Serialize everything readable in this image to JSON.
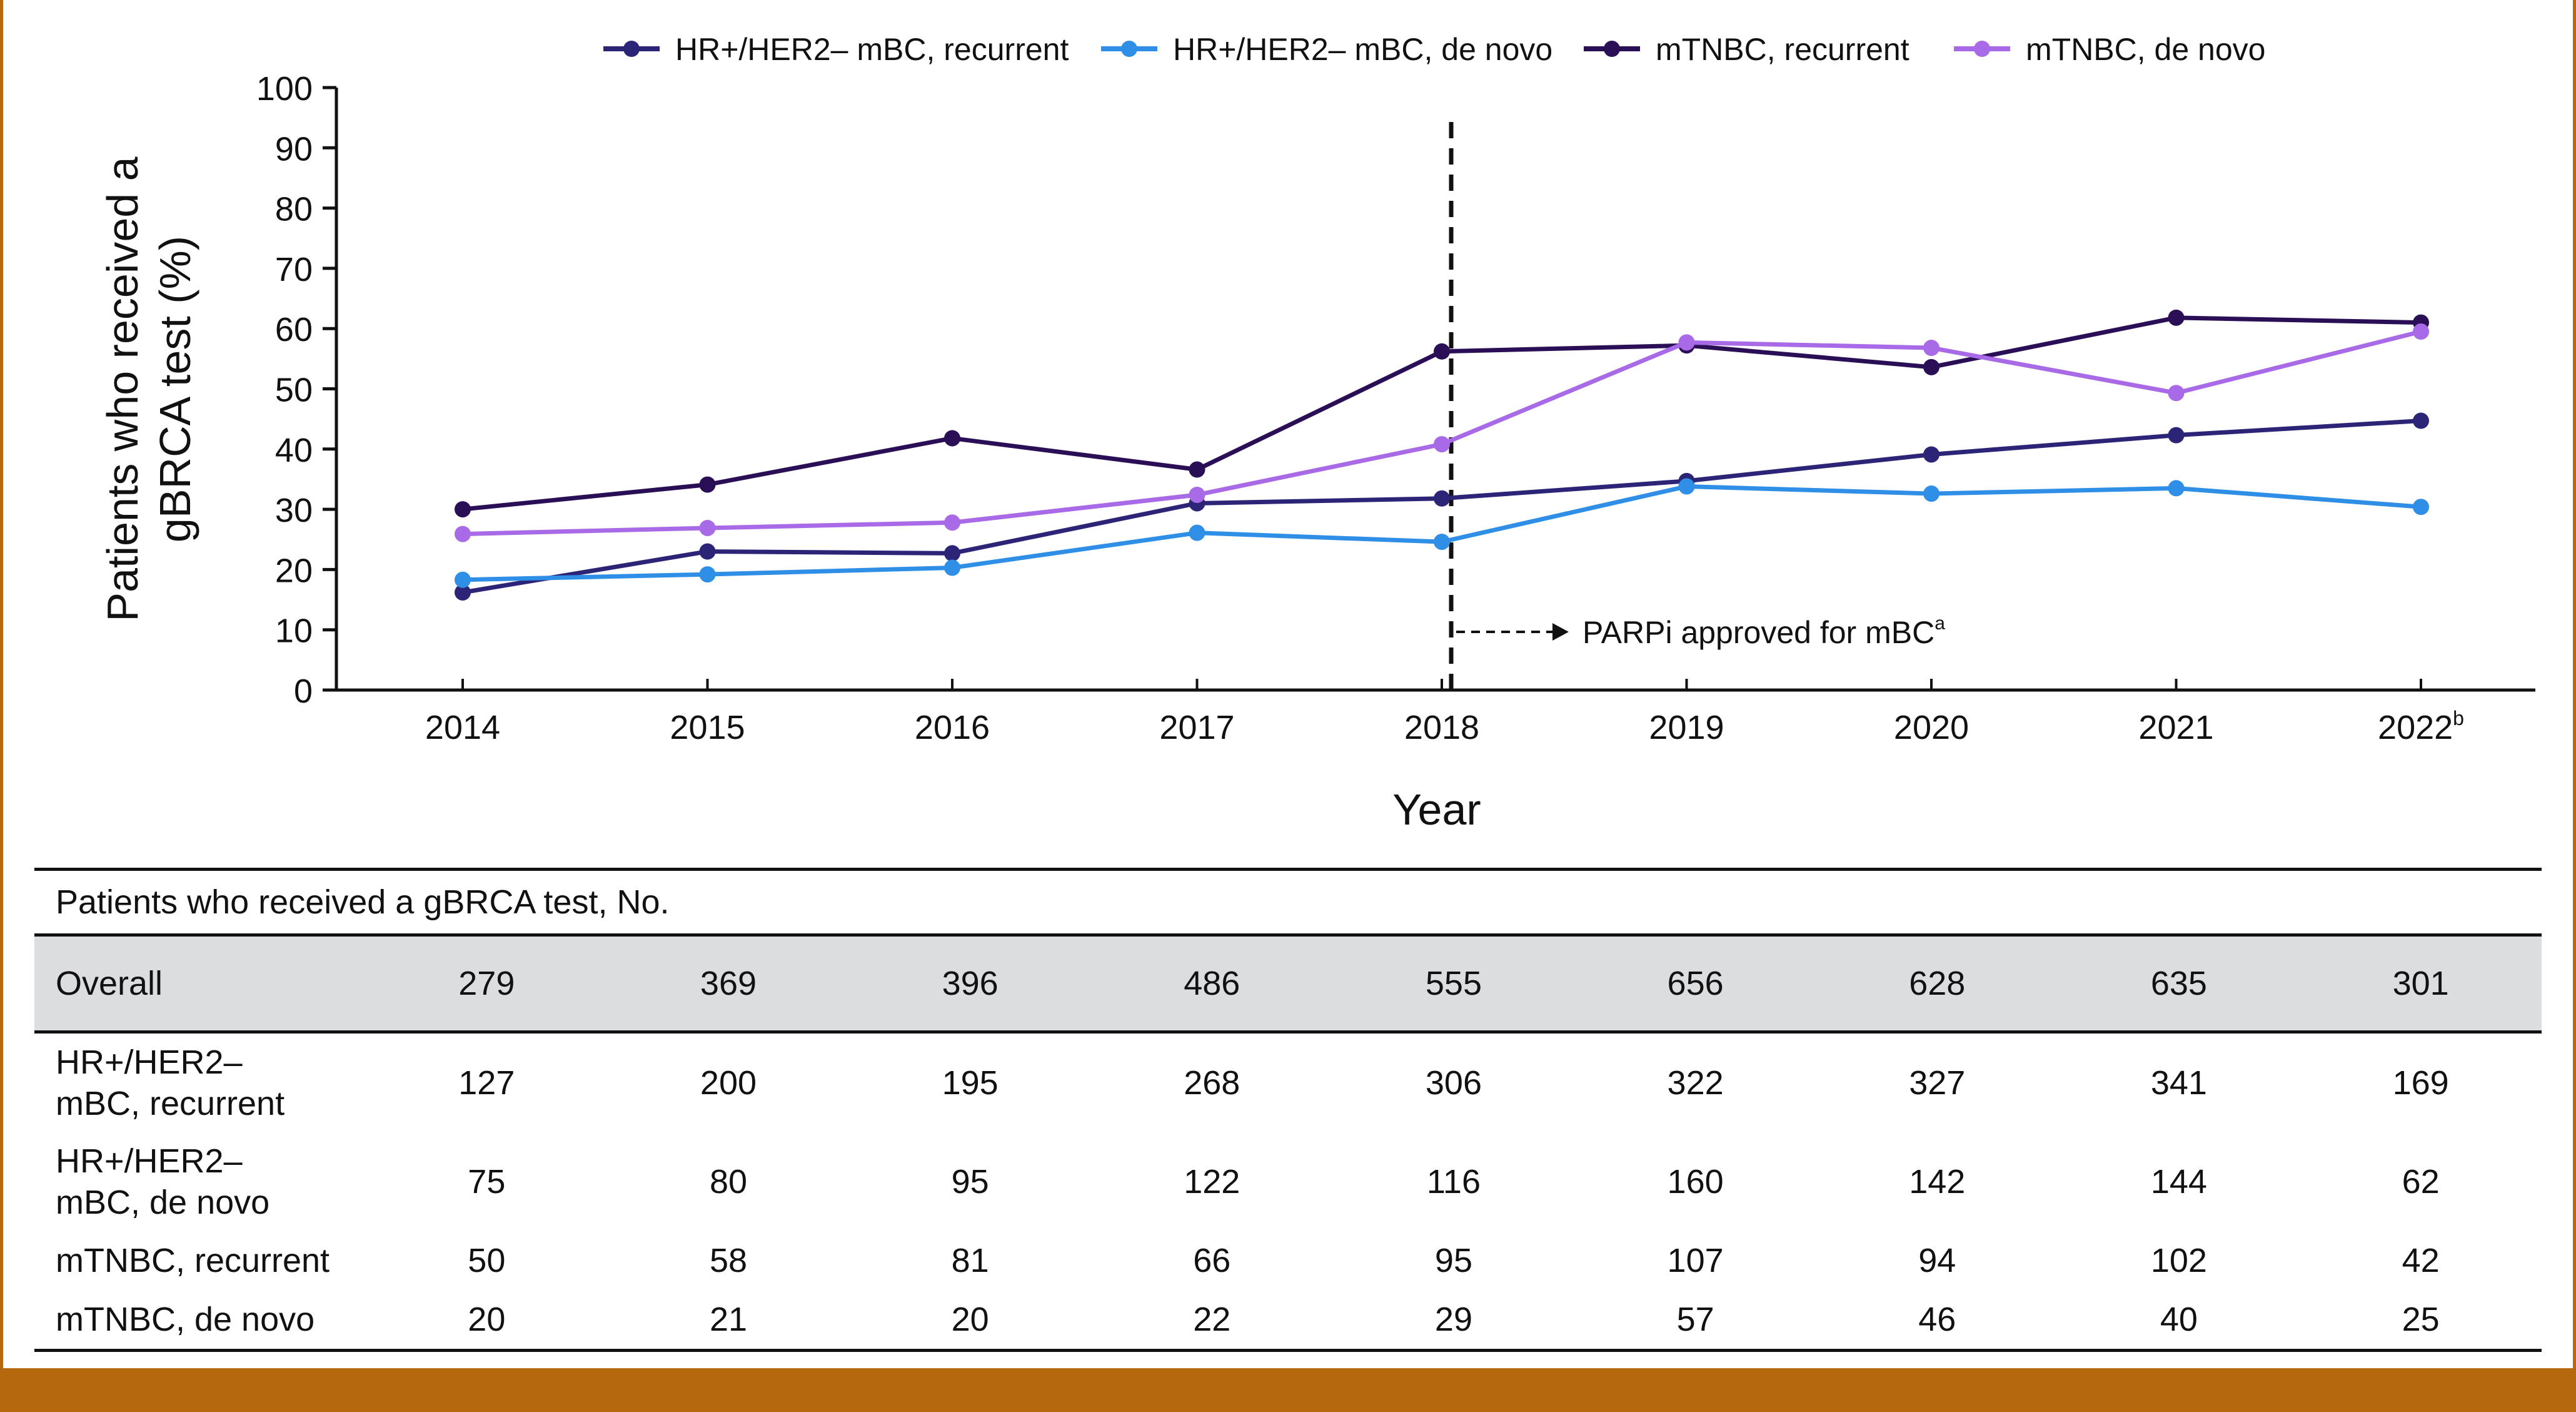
{
  "chart_data": {
    "type": "line",
    "xlabel": "Year",
    "ylabel_lines": [
      "Patients who received a",
      "gBRCA test (%)"
    ],
    "ylim": [
      0,
      100
    ],
    "yticks": [
      0,
      10,
      20,
      30,
      40,
      50,
      60,
      70,
      80,
      90,
      100
    ],
    "x": [
      "2014",
      "2015",
      "2016",
      "2017",
      "2018",
      "2019",
      "2020",
      "2021",
      "2022"
    ],
    "x_last_superscript": "b",
    "series": [
      {
        "name": "HR+/HER2– mBC, recurrent",
        "color": "#2c2476",
        "values": [
          16.2,
          23.0,
          22.7,
          31.0,
          31.8,
          34.7,
          39.1,
          42.3,
          44.7
        ]
      },
      {
        "name": "HR+/HER2– mBC, de novo",
        "color": "#2f8fe6",
        "values": [
          18.3,
          19.2,
          20.3,
          26.1,
          24.6,
          33.8,
          32.6,
          33.5,
          30.4
        ]
      },
      {
        "name": "mTNBC, recurrent",
        "color": "#2a0f57",
        "values": [
          30.0,
          34.1,
          41.8,
          36.6,
          56.2,
          57.2,
          53.6,
          61.8,
          61.0
        ]
      },
      {
        "name": "mTNBC, de novo",
        "color": "#a86ae6",
        "values": [
          25.9,
          26.9,
          27.8,
          32.4,
          40.8,
          57.7,
          56.8,
          49.3,
          59.5
        ]
      }
    ],
    "reference_line": {
      "x": "2018",
      "label": "PARPi approved for mBC",
      "label_superscript": "a"
    },
    "legend_position": "top"
  },
  "table": {
    "caption": "Patients who received a gBRCA test, No.",
    "rows": [
      {
        "label": [
          "Overall"
        ],
        "values": [
          "279",
          "369",
          "396",
          "486",
          "555",
          "656",
          "628",
          "635",
          "301"
        ]
      },
      {
        "label": [
          "HR+/HER2–",
          "mBC, recurrent"
        ],
        "values": [
          "127",
          "200",
          "195",
          "268",
          "306",
          "322",
          "327",
          "341",
          "169"
        ]
      },
      {
        "label": [
          "HR+/HER2–",
          "mBC, de novo"
        ],
        "values": [
          "75",
          "80",
          "95",
          "122",
          "116",
          "160",
          "142",
          "144",
          "62"
        ]
      },
      {
        "label": [
          "mTNBC, recurrent"
        ],
        "values": [
          "50",
          "58",
          "81",
          "66",
          "95",
          "107",
          "94",
          "102",
          "42"
        ]
      },
      {
        "label": [
          "mTNBC, de novo"
        ],
        "values": [
          "20",
          "21",
          "20",
          "22",
          "29",
          "57",
          "46",
          "40",
          "25"
        ]
      }
    ]
  }
}
